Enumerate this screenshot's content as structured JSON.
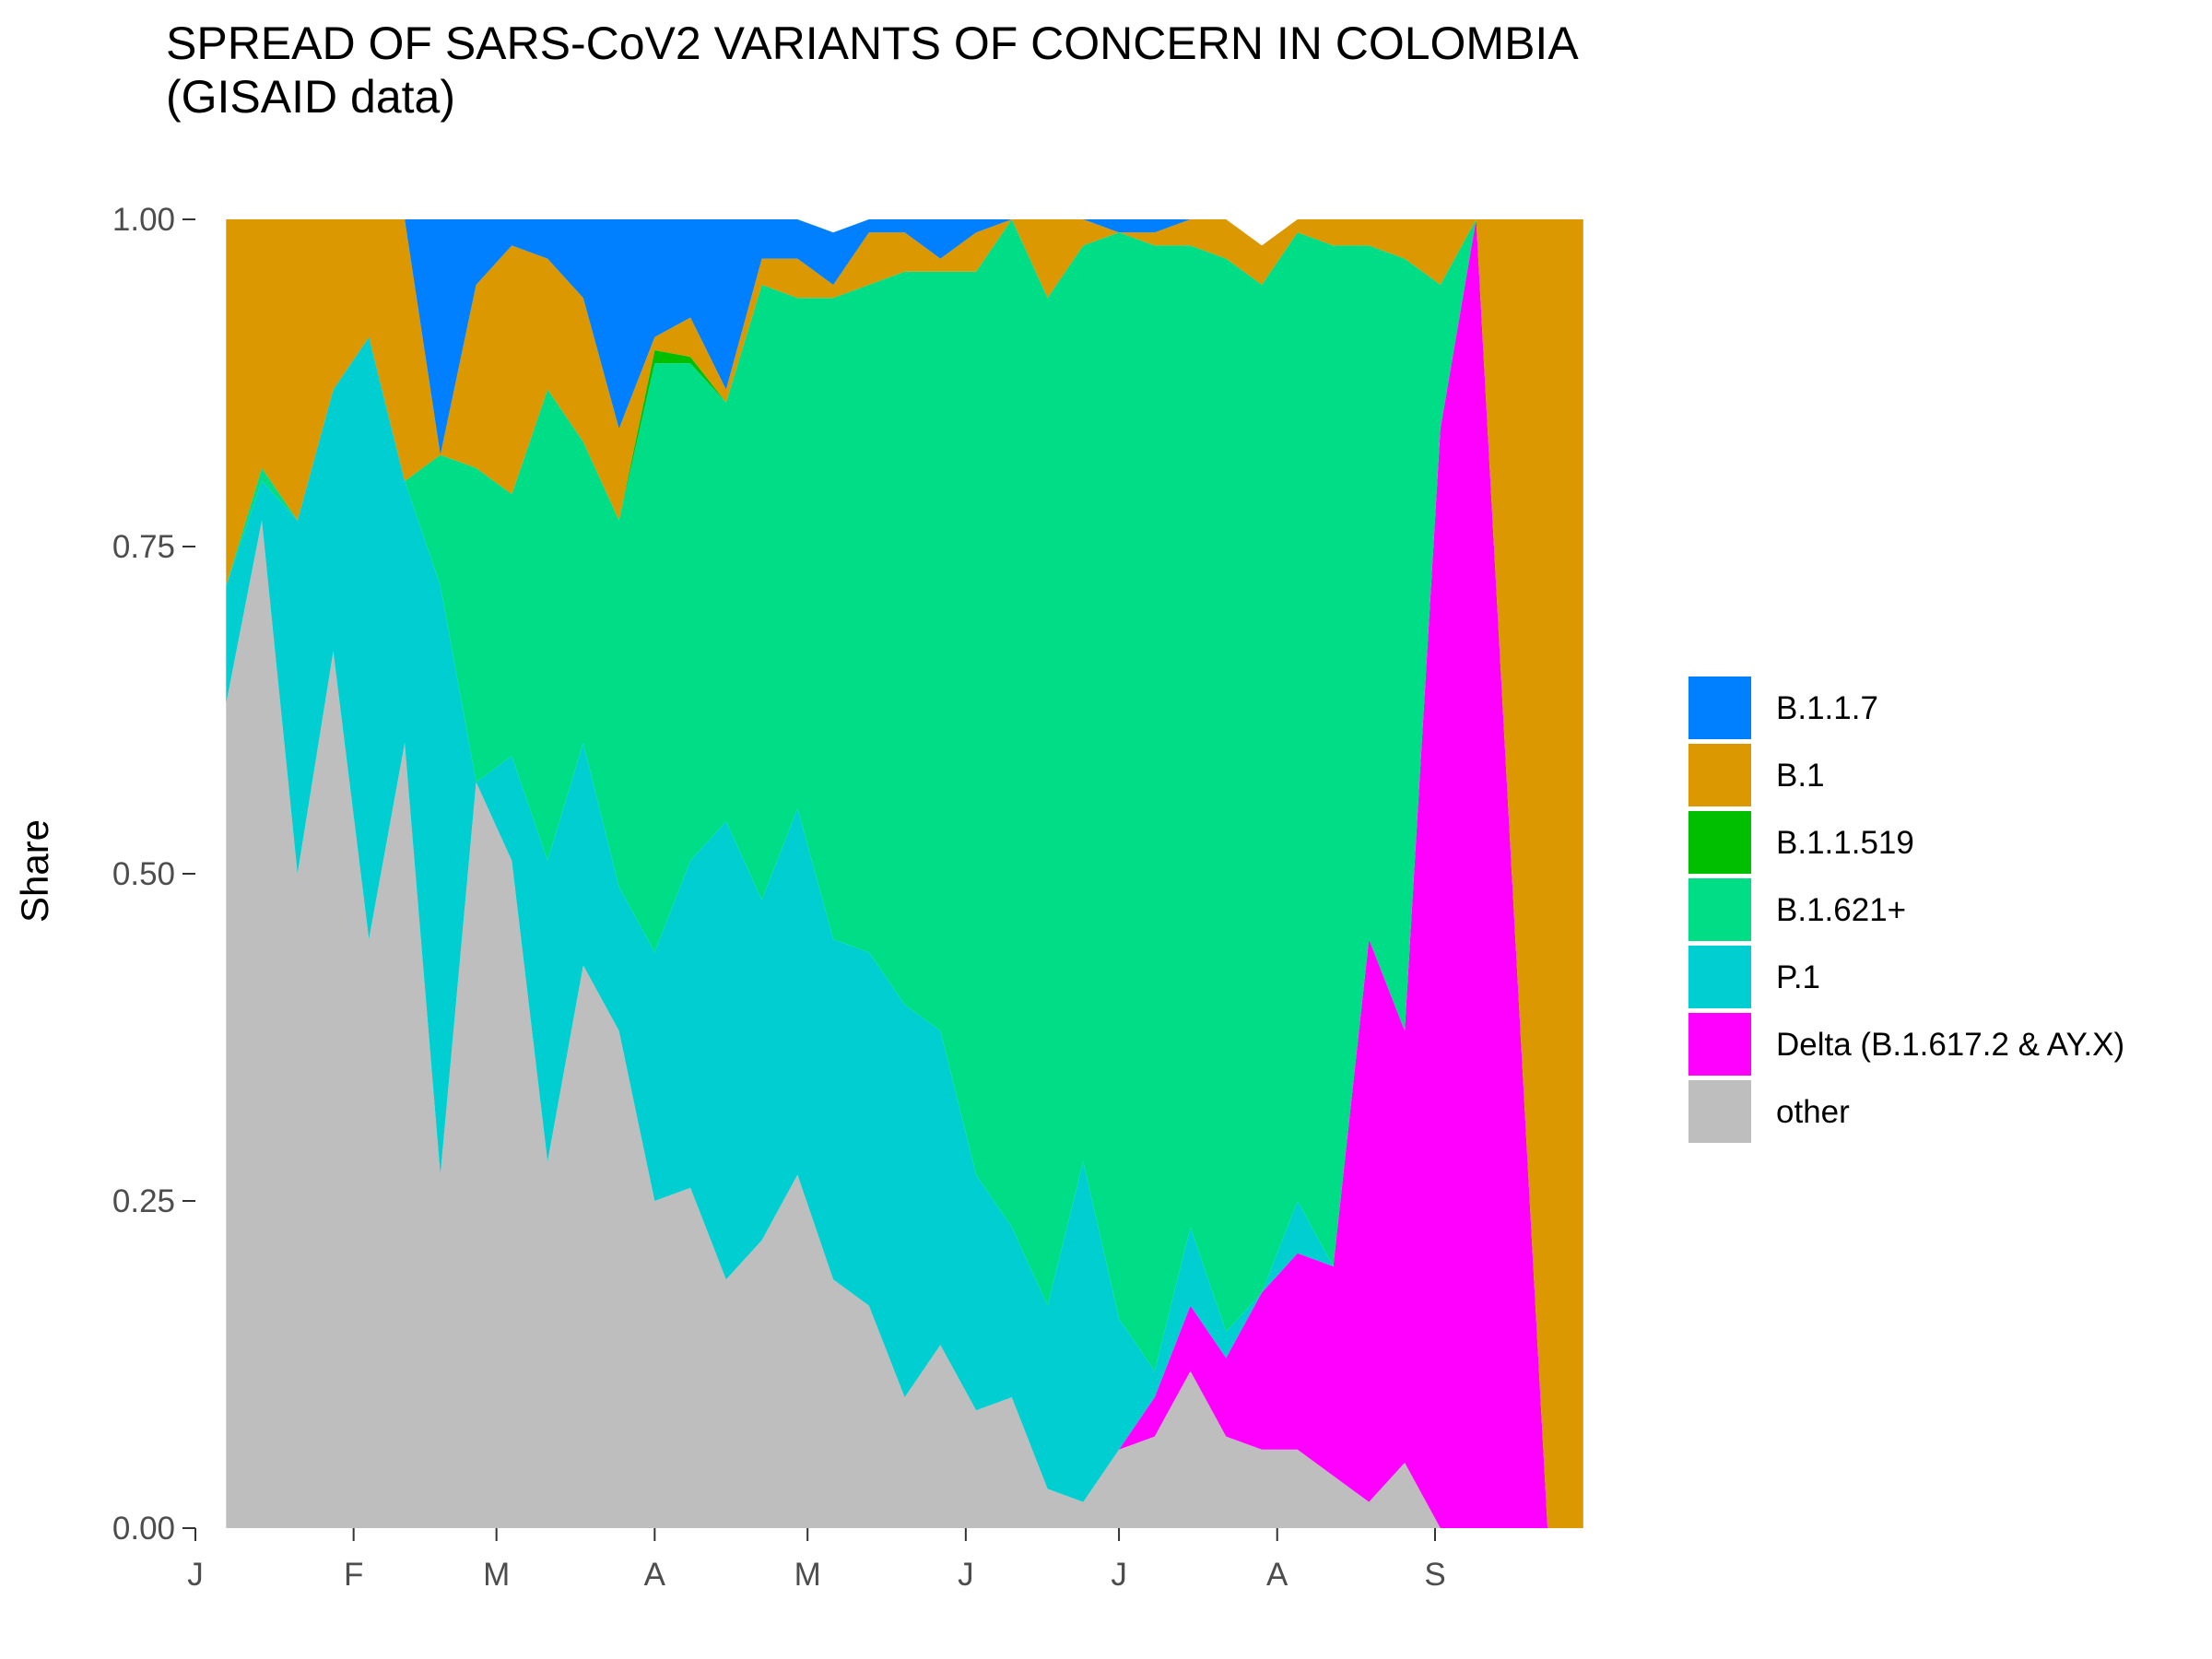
{
  "chart_data": {
    "type": "area",
    "title": "SPREAD OF SARS-CoV2 VARIANTS OF CONCERN IN COLOMBIA\n(GISAID data)",
    "xlabel": "",
    "ylabel": "Share",
    "ylim": [
      0,
      1
    ],
    "yticks": [
      "0.00",
      "0.25",
      "0.50",
      "0.75",
      "1.00"
    ],
    "xticks": [
      {
        "label": "J",
        "week": 0
      },
      {
        "label": "F",
        "week": 4.43
      },
      {
        "label": "M",
        "week": 8.43
      },
      {
        "label": "A",
        "week": 12.86
      },
      {
        "label": "M",
        "week": 17.14
      },
      {
        "label": "J",
        "week": 21.57
      },
      {
        "label": "J",
        "week": 25.86
      },
      {
        "label": "A",
        "week": 30.29
      },
      {
        "label": "S",
        "week": 34.71
      }
    ],
    "x_unit": "week of 2021 (weekly bins)",
    "x": [
      0.86,
      1.86,
      2.86,
      3.86,
      4.86,
      5.86,
      6.86,
      7.86,
      8.86,
      9.86,
      10.86,
      11.86,
      12.86,
      13.86,
      14.86,
      15.86,
      16.86,
      17.86,
      18.86,
      19.86,
      20.86,
      21.86,
      22.86,
      23.86,
      24.86,
      25.86,
      26.86,
      27.86,
      28.86,
      29.86,
      30.86,
      31.86,
      32.86,
      33.86,
      34.86,
      35.86,
      36.86,
      37.86,
      38.86
    ],
    "legend_position": "right",
    "grid": false,
    "series": [
      {
        "name": "other",
        "color": "#bebebe",
        "values": [
          0.63,
          0.77,
          0.5,
          0.67,
          0.45,
          0.6,
          0.27,
          0.57,
          0.51,
          0.28,
          0.43,
          0.38,
          0.25,
          0.26,
          0.19,
          0.22,
          0.27,
          0.19,
          0.17,
          0.1,
          0.14,
          0.09,
          0.1,
          0.03,
          0.02,
          0.06,
          0.07,
          0.12,
          0.07,
          0.06,
          0.06,
          0.04,
          0.02,
          0.05,
          0.0,
          0.0,
          0.0,
          0.0,
          0.0
        ]
      },
      {
        "name": "Delta (B.1.617.2 & AY.X)",
        "color": "#ff00ff",
        "values": [
          0,
          0,
          0,
          0,
          0,
          0,
          0,
          0,
          0,
          0,
          0,
          0,
          0,
          0,
          0,
          0,
          0,
          0,
          0,
          0,
          0,
          0,
          0,
          0,
          0,
          0,
          0.03,
          0.05,
          0.06,
          0.12,
          0.15,
          0.16,
          0.43,
          0.33,
          0.84,
          1.0,
          0.5,
          0.0,
          0.0
        ]
      },
      {
        "name": "P.1",
        "color": "#00ced1",
        "values": [
          0.09,
          0.03,
          0.27,
          0.2,
          0.46,
          0.2,
          0.45,
          0.0,
          0.08,
          0.23,
          0.17,
          0.11,
          0.19,
          0.25,
          0.35,
          0.26,
          0.28,
          0.26,
          0.27,
          0.3,
          0.24,
          0.18,
          0.13,
          0.14,
          0.26,
          0.1,
          0.02,
          0.06,
          0.02,
          0.0,
          0.04,
          0.0,
          0.0,
          0.0,
          0.0,
          0.0,
          0.0,
          0.0,
          0.0
        ]
      },
      {
        "name": "B.1.621+",
        "color": "#00dd87",
        "values": [
          0,
          0.01,
          0,
          0,
          0,
          0,
          0.1,
          0.24,
          0.2,
          0.36,
          0.23,
          0.28,
          0.45,
          0.38,
          0.32,
          0.47,
          0.39,
          0.49,
          0.51,
          0.56,
          0.58,
          0.69,
          0.77,
          0.77,
          0.7,
          0.83,
          0.86,
          0.75,
          0.82,
          0.77,
          0.74,
          0.78,
          0.53,
          0.59,
          0.11,
          0.0,
          0.0,
          0.0,
          0.0
        ]
      },
      {
        "name": "B.1.1.519",
        "color": "#00bf00",
        "values": [
          0,
          0,
          0,
          0,
          0,
          0,
          0,
          0,
          0,
          0,
          0,
          0,
          0.01,
          0.005,
          0,
          0,
          0,
          0,
          0,
          0,
          0,
          0,
          0,
          0,
          0,
          0,
          0,
          0,
          0,
          0,
          0,
          0,
          0,
          0,
          0,
          0,
          0,
          0,
          0
        ]
      },
      {
        "name": "B.1",
        "color": "#dc9800",
        "values": [
          0.28,
          0.19,
          0.23,
          0.13,
          0.09,
          0.2,
          0.0,
          0.14,
          0.19,
          0.1,
          0.11,
          0.07,
          0.01,
          0.03,
          0.01,
          0.02,
          0.03,
          0.01,
          0.04,
          0.03,
          0.01,
          0.03,
          0.0,
          0.06,
          0.02,
          0.0,
          0.01,
          0.02,
          0.05,
          0.03,
          0.01,
          0.02,
          0.02,
          0.03,
          0.05,
          0.0,
          0.5,
          1.0,
          1.0
        ]
      },
      {
        "name": "B.1.1.7",
        "color": "#0080ff",
        "values": [
          0,
          0,
          0,
          0,
          0,
          0,
          0.18,
          0.05,
          0.02,
          0.03,
          0.06,
          0.16,
          0.1,
          0.08,
          0.14,
          0.04,
          0.03,
          0.04,
          0.01,
          0.01,
          0.03,
          0.01,
          0.0,
          0.0,
          0.0,
          0.01,
          0.01,
          0.0,
          0.0,
          0.0,
          0.0,
          0.0,
          0.0,
          0.0,
          0.0,
          0.0,
          0.0,
          0.0,
          0.0
        ]
      }
    ],
    "legend_order": [
      "B.1.1.7",
      "B.1",
      "B.1.1.519",
      "B.1.621+",
      "P.1",
      "Delta (B.1.617.2 & AY.X)",
      "other"
    ]
  }
}
